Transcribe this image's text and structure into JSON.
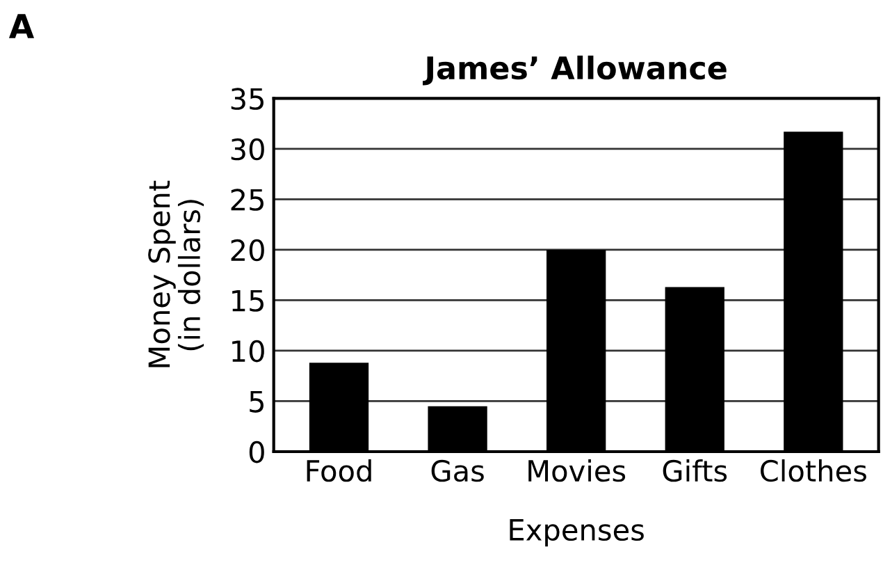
{
  "chart_data": {
    "type": "bar",
    "title": "James’ Allowance",
    "xlabel": "Expenses",
    "ylabel": "Money Spent\n(in dollars)",
    "categories": [
      "Food",
      "Gas",
      "Movies",
      "Gifts",
      "Clothes"
    ],
    "values": [
      8.8,
      4.5,
      20,
      16.3,
      31.7
    ],
    "color": "#000000",
    "ylim": [
      0,
      35
    ],
    "yticks": [
      0,
      5,
      10,
      15,
      20,
      25,
      30,
      35
    ],
    "grid": "y",
    "annotations": [
      "A"
    ]
  }
}
